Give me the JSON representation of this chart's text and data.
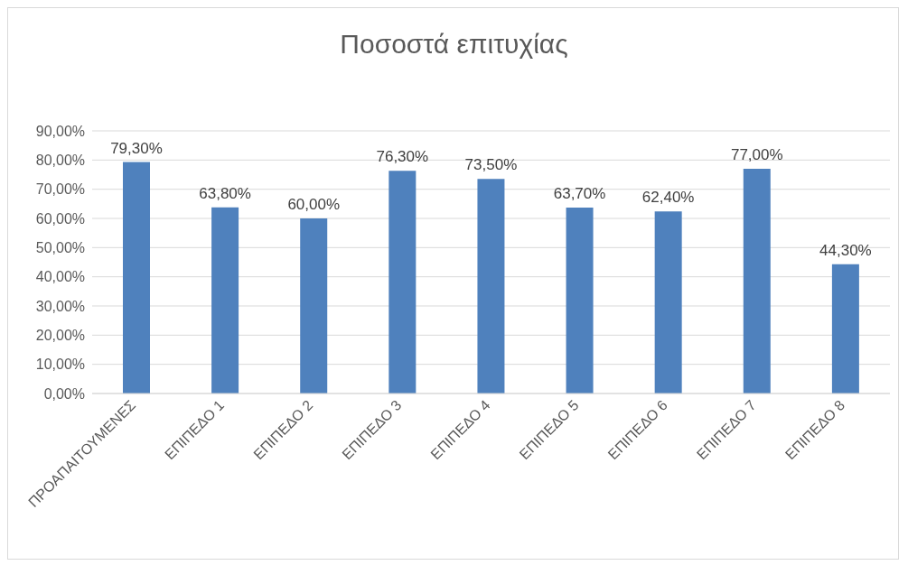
{
  "chart_data": {
    "type": "bar",
    "title": "Ποσοστά επιτυχίας",
    "categories": [
      "ΠΡΟΑΠΑΙΤΟΥΜΕΝΕΣ",
      "ΕΠΙΠΕΔΟ 1",
      "ΕΠΙΠΕΔΟ 2",
      "ΕΠΙΠΕΔΟ 3",
      "ΕΠΙΠΕΔΟ 4",
      "ΕΠΙΠΕΔΟ 5",
      "ΕΠΙΠΕΔΟ 6",
      "ΕΠΙΠΕΔΟ 7",
      "ΕΠΙΠΕΔΟ 8"
    ],
    "values": [
      79.3,
      63.8,
      60.0,
      76.3,
      73.5,
      63.7,
      62.4,
      77.0,
      44.3
    ],
    "value_labels": [
      "79,30%",
      "63,80%",
      "60,00%",
      "76,30%",
      "73,50%",
      "63,70%",
      "62,40%",
      "77,00%",
      "44,30%"
    ],
    "color": "#4f81bd",
    "ylim": [
      0,
      90
    ],
    "yticks": [
      {
        "value": 0,
        "label": "0,00%"
      },
      {
        "value": 10,
        "label": "10,00%"
      },
      {
        "value": 20,
        "label": "20,00%"
      },
      {
        "value": 30,
        "label": "30,00%"
      },
      {
        "value": 40,
        "label": "40,00%"
      },
      {
        "value": 50,
        "label": "50,00%"
      },
      {
        "value": 60,
        "label": "60,00%"
      },
      {
        "value": 70,
        "label": "70,00%"
      },
      {
        "value": 80,
        "label": "80,00%"
      },
      {
        "value": 90,
        "label": "90,00%"
      }
    ],
    "grid": "y",
    "legend": false
  }
}
